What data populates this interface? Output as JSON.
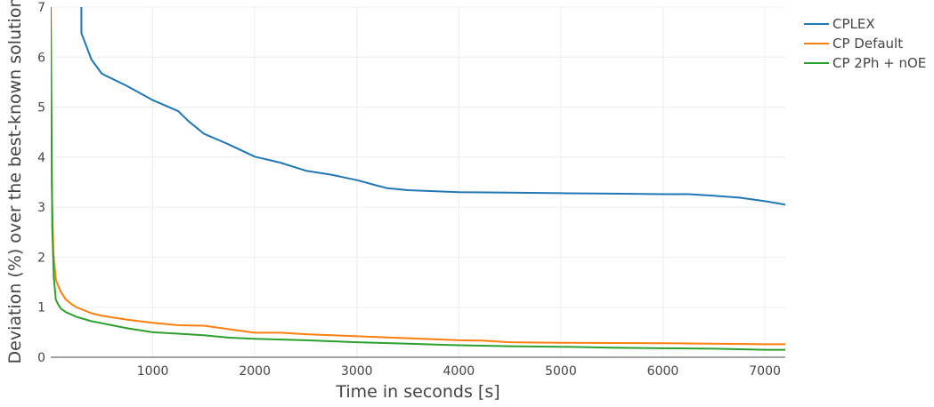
{
  "chart_data": {
    "type": "line",
    "title": "",
    "xlabel": "Time in seconds [s]",
    "ylabel": "Deviation (%) over the best-known solution",
    "xlim": [
      0,
      7200
    ],
    "ylim": [
      0,
      7
    ],
    "x_ticks": [
      1000,
      2000,
      3000,
      4000,
      5000,
      6000,
      7000
    ],
    "y_ticks": [
      0,
      1,
      2,
      3,
      4,
      5,
      6,
      7
    ],
    "grid": true,
    "legend_position": "top-right",
    "series": [
      {
        "name": "CPLEX",
        "color": "#1f77b4",
        "x": [
          300,
          300,
          400,
          500,
          750,
          1000,
          1250,
          1350,
          1500,
          1750,
          2000,
          2250,
          2500,
          2750,
          3000,
          3200,
          3300,
          3500,
          4000,
          4500,
          5000,
          5500,
          6000,
          6250,
          6500,
          6750,
          7000,
          7200
        ],
        "y": [
          7.0,
          6.48,
          5.95,
          5.67,
          5.42,
          5.14,
          4.92,
          4.72,
          4.47,
          4.25,
          4.01,
          3.89,
          3.73,
          3.65,
          3.54,
          3.43,
          3.38,
          3.34,
          3.3,
          3.29,
          3.28,
          3.27,
          3.26,
          3.26,
          3.23,
          3.19,
          3.12,
          3.05
        ]
      },
      {
        "name": "CP Default",
        "color": "#ff7f0e",
        "x": [
          0,
          10,
          25,
          50,
          75,
          100,
          150,
          200,
          250,
          300,
          400,
          500,
          750,
          1000,
          1250,
          1500,
          1750,
          2000,
          2250,
          2500,
          3000,
          3500,
          4000,
          4250,
          4500,
          5000,
          6000,
          7000,
          7200
        ],
        "y": [
          6.9,
          3.5,
          2.1,
          1.55,
          1.42,
          1.3,
          1.15,
          1.07,
          1.0,
          0.96,
          0.88,
          0.83,
          0.75,
          0.69,
          0.64,
          0.63,
          0.56,
          0.49,
          0.49,
          0.46,
          0.42,
          0.38,
          0.34,
          0.33,
          0.3,
          0.29,
          0.28,
          0.26,
          0.26
        ]
      },
      {
        "name": "CP 2Ph + nOE",
        "color": "#2ca02c",
        "x": [
          0,
          8,
          15,
          30,
          50,
          75,
          100,
          150,
          250,
          400,
          500,
          750,
          1000,
          1250,
          1500,
          1750,
          2000,
          2500,
          3000,
          3500,
          4000,
          4500,
          5000,
          5500,
          6000,
          6500,
          7000,
          7200
        ],
        "y": [
          7.0,
          4.5,
          2.6,
          1.6,
          1.15,
          1.05,
          0.97,
          0.9,
          0.81,
          0.72,
          0.68,
          0.58,
          0.5,
          0.47,
          0.44,
          0.39,
          0.37,
          0.34,
          0.3,
          0.27,
          0.24,
          0.22,
          0.21,
          0.19,
          0.18,
          0.17,
          0.15,
          0.15
        ]
      }
    ]
  }
}
